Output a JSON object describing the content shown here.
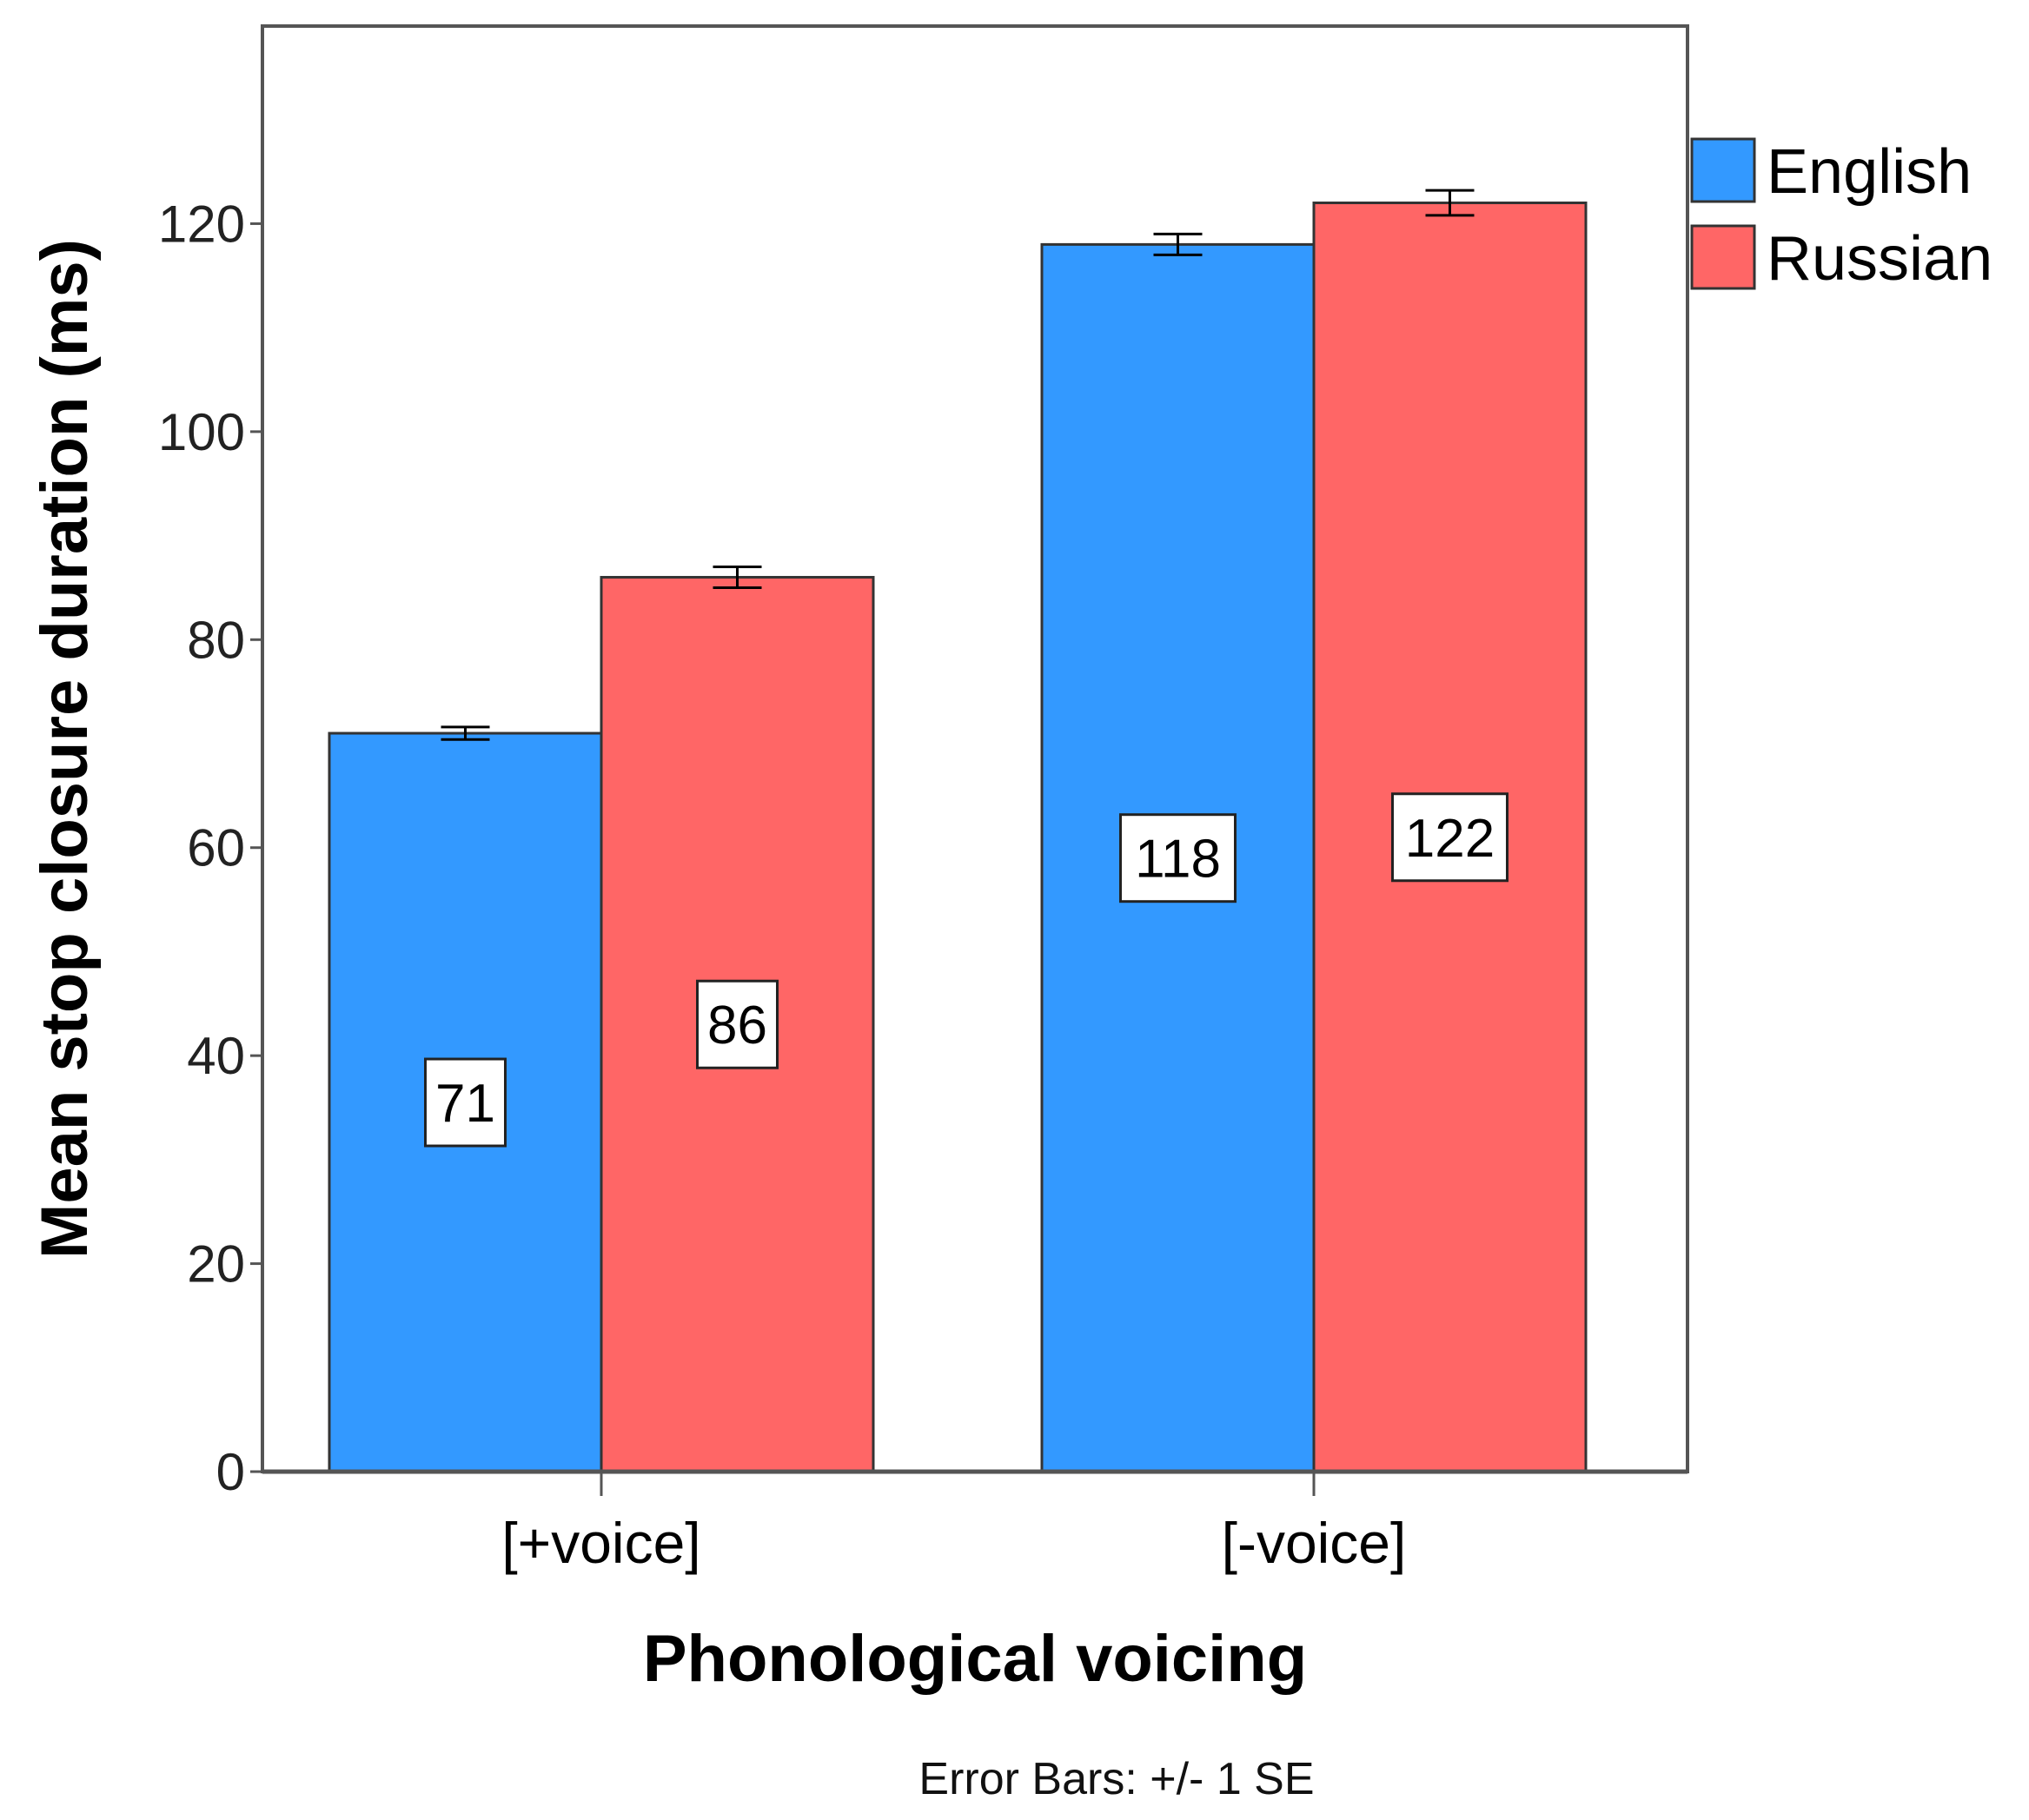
{
  "chart_data": {
    "type": "bar",
    "categories": [
      "[+voice]",
      "[-voice]"
    ],
    "series": [
      {
        "name": "English",
        "color": "#3399ff",
        "values": [
          71,
          118
        ],
        "se": [
          0.6,
          1.0
        ]
      },
      {
        "name": "Russian",
        "color": "#ff6666",
        "values": [
          86,
          122
        ],
        "se": [
          1.0,
          1.2
        ]
      }
    ],
    "data_labels": [
      [
        "71",
        "118"
      ],
      [
        "86",
        "122"
      ]
    ],
    "xlabel": "Phonological voicing",
    "ylabel": "Mean stop closure duration (ms)",
    "ylim": [
      0,
      139
    ],
    "yticks": [
      0,
      20,
      40,
      60,
      80,
      100,
      120
    ],
    "grid": false,
    "legend_position": "top-right",
    "footnote": "Error Bars: +/- 1 SE"
  }
}
